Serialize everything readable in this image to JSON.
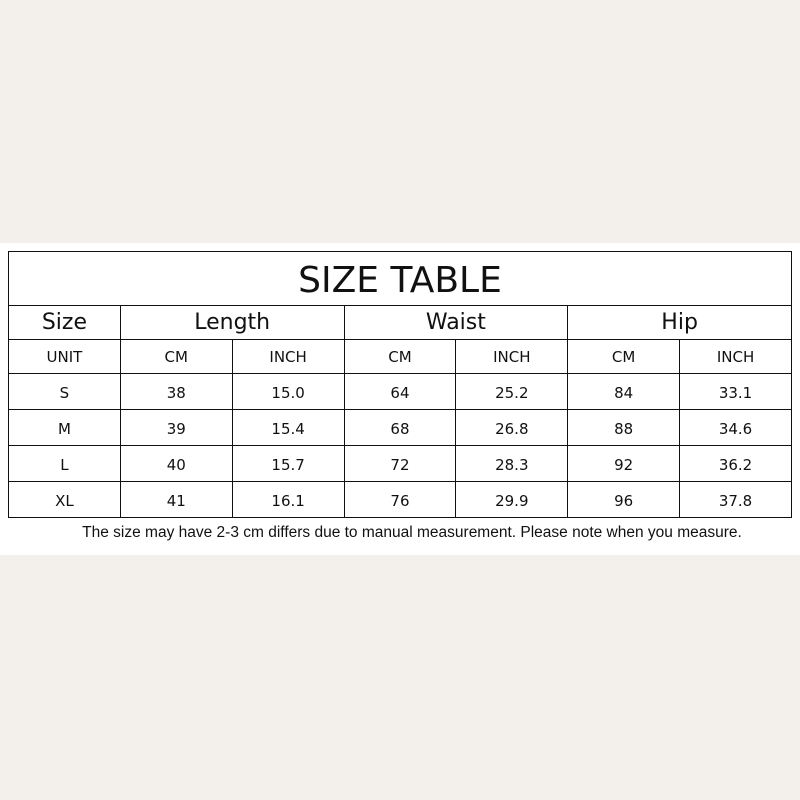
{
  "title": "SIZE TABLE",
  "headers": [
    "Size",
    "Length",
    "Waist",
    "Hip"
  ],
  "units": [
    "UNIT",
    "CM",
    "INCH",
    "CM",
    "INCH",
    "CM",
    "INCH"
  ],
  "rows": [
    [
      "S",
      "38",
      "15.0",
      "64",
      "25.2",
      "84",
      "33.1"
    ],
    [
      "M",
      "39",
      "15.4",
      "68",
      "26.8",
      "88",
      "34.6"
    ],
    [
      "L",
      "40",
      "15.7",
      "72",
      "28.3",
      "92",
      "36.2"
    ],
    [
      "XL",
      "41",
      "16.1",
      "76",
      "29.9",
      "96",
      "37.8"
    ]
  ],
  "note": "The size may have 2-3 cm differs due to manual measurement. Please note when you measure."
}
